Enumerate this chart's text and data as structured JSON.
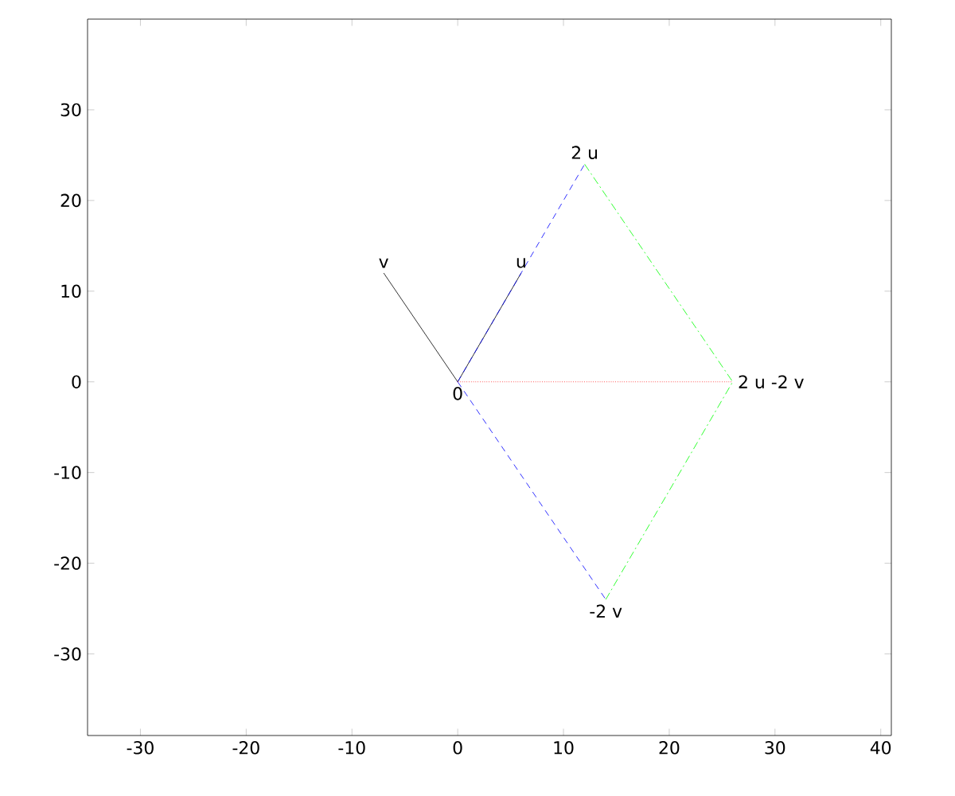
{
  "chart_data": {
    "type": "line",
    "xlim": [
      -35,
      41
    ],
    "ylim": [
      -39,
      40
    ],
    "xticks": [
      -30,
      -20,
      -10,
      0,
      10,
      20,
      30,
      40
    ],
    "yticks": [
      -30,
      -20,
      -10,
      0,
      10,
      20,
      30
    ],
    "grid": false,
    "series": [
      {
        "x": [
          0,
          6
        ],
        "values": [
          0,
          12
        ],
        "color": "#000000",
        "line_style": "solid"
      },
      {
        "x": [
          0,
          -7
        ],
        "values": [
          0,
          12
        ],
        "color": "#000000",
        "line_style": "solid"
      },
      {
        "x": [
          0,
          12
        ],
        "values": [
          0,
          24
        ],
        "color": "#0000ff",
        "line_style": "dashed"
      },
      {
        "x": [
          0,
          14
        ],
        "values": [
          0,
          -24
        ],
        "color": "#0000ff",
        "line_style": "dashed"
      },
      {
        "x": [
          12,
          26,
          14
        ],
        "values": [
          24,
          0,
          -24
        ],
        "color": "#00ff00",
        "line_style": "dashdot"
      },
      {
        "x": [
          0,
          26
        ],
        "values": [
          0,
          0
        ],
        "color": "#ff0000",
        "line_style": "dotted"
      }
    ],
    "annotations": [
      {
        "text": "u",
        "x": 6,
        "y": 12
      },
      {
        "text": "v",
        "x": -7,
        "y": 12
      },
      {
        "text": "2 u",
        "x": 12,
        "y": 24
      },
      {
        "text": "-2 v",
        "x": 14,
        "y": -24
      },
      {
        "text": "2 u -2 v",
        "x": 26,
        "y": 0
      },
      {
        "text": "0",
        "x": 0,
        "y": 0
      }
    ]
  }
}
